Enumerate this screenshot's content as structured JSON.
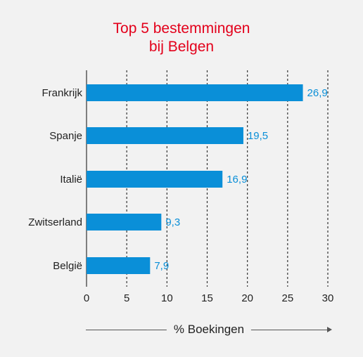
{
  "chart_data": {
    "type": "bar",
    "orientation": "horizontal",
    "title_lines": [
      "Top 5 bestemmingen",
      "bij Belgen"
    ],
    "categories": [
      "Frankrijk",
      "Spanje",
      "Italië",
      "Zwitserland",
      "België"
    ],
    "values": [
      26.9,
      19.5,
      16.9,
      9.3,
      7.9
    ],
    "value_labels": [
      "26,9",
      "19,5",
      "16,9",
      "9,3",
      "7,9"
    ],
    "xlabel": "% Boekingen",
    "xlim": [
      0,
      30
    ],
    "xticks": [
      0,
      5,
      10,
      15,
      20,
      25,
      30
    ],
    "grid": "vertical dotted",
    "colors": {
      "bar": "#0a8fd8",
      "value_label": "#0a8fd8",
      "title": "#e3001b"
    }
  }
}
